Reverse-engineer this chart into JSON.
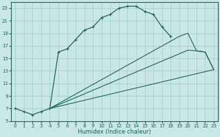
{
  "xlabel": "Humidex (Indice chaleur)",
  "bg_color": "#c9e8e5",
  "grid_color": "#aad0cc",
  "line_color": "#1a6060",
  "xlim": [
    -0.5,
    23.5
  ],
  "ylim": [
    5,
    24
  ],
  "yticks": [
    5,
    7,
    9,
    11,
    13,
    15,
    17,
    19,
    21,
    23
  ],
  "xticks": [
    0,
    1,
    2,
    3,
    4,
    5,
    6,
    7,
    8,
    9,
    10,
    11,
    12,
    13,
    14,
    15,
    16,
    17,
    18,
    19,
    20,
    21,
    22,
    23
  ],
  "line1_x": [
    0,
    1,
    2,
    3,
    4,
    5,
    6,
    7,
    8,
    9,
    10,
    11,
    12,
    13,
    14,
    15,
    16,
    17,
    18
  ],
  "line1_y": [
    7,
    6.5,
    6,
    6.5,
    7,
    16,
    16.5,
    18,
    19.5,
    20,
    21.5,
    22,
    23,
    23.3,
    23.3,
    22.5,
    22,
    20,
    18.5
  ],
  "line2_x": [
    4,
    19,
    20,
    21,
    22,
    23
  ],
  "line2_y": [
    7,
    18.5,
    19,
    16.2,
    16,
    13.2
  ],
  "line3_x": [
    4,
    20,
    21,
    22,
    23
  ],
  "line3_y": [
    7,
    16.3,
    16.2,
    16.0,
    13.2
  ],
  "line4_x": [
    4,
    23
  ],
  "line4_y": [
    7,
    13.2
  ]
}
